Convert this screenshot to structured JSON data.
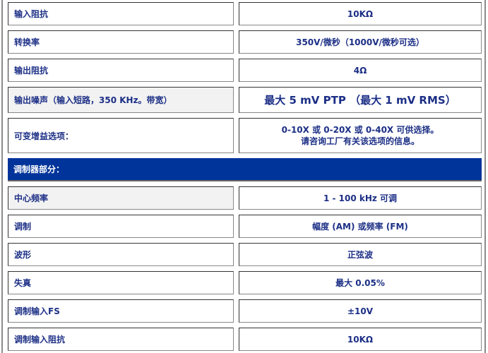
{
  "rows_top": [
    {
      "label": "输入阻抗",
      "value": "10KΩ"
    },
    {
      "label": "转换率",
      "value": "350V/微秒（1000V/微秒可选）"
    },
    {
      "label": "输出阻抗",
      "value": "4Ω"
    },
    {
      "label": "输出噪声（输入短路，350 KHz。带宽）",
      "value": "最大 5 mV PTP （最大 1 mV RMS）"
    },
    {
      "label": "可变增益选项：",
      "value_line1": "0-10X 或 0-20X 或 0-40X 可供选择。",
      "value_line2": "请咨询工厂有关该选项的信息。"
    }
  ],
  "section_header": "调制器部分：",
  "rows_bottom": [
    {
      "label": "中心频率",
      "value": "1 - 100 kHz 可调"
    },
    {
      "label": "调制",
      "value": "幅度 (AM) 或频率 (FM)"
    },
    {
      "label": "波形",
      "value": "正弦波"
    },
    {
      "label": "失真",
      "value": "最大 0.05%"
    },
    {
      "label": "调制输入FS",
      "value": "±10V"
    },
    {
      "label": "调制输入阻抗",
      "value": "10KΩ"
    }
  ]
}
